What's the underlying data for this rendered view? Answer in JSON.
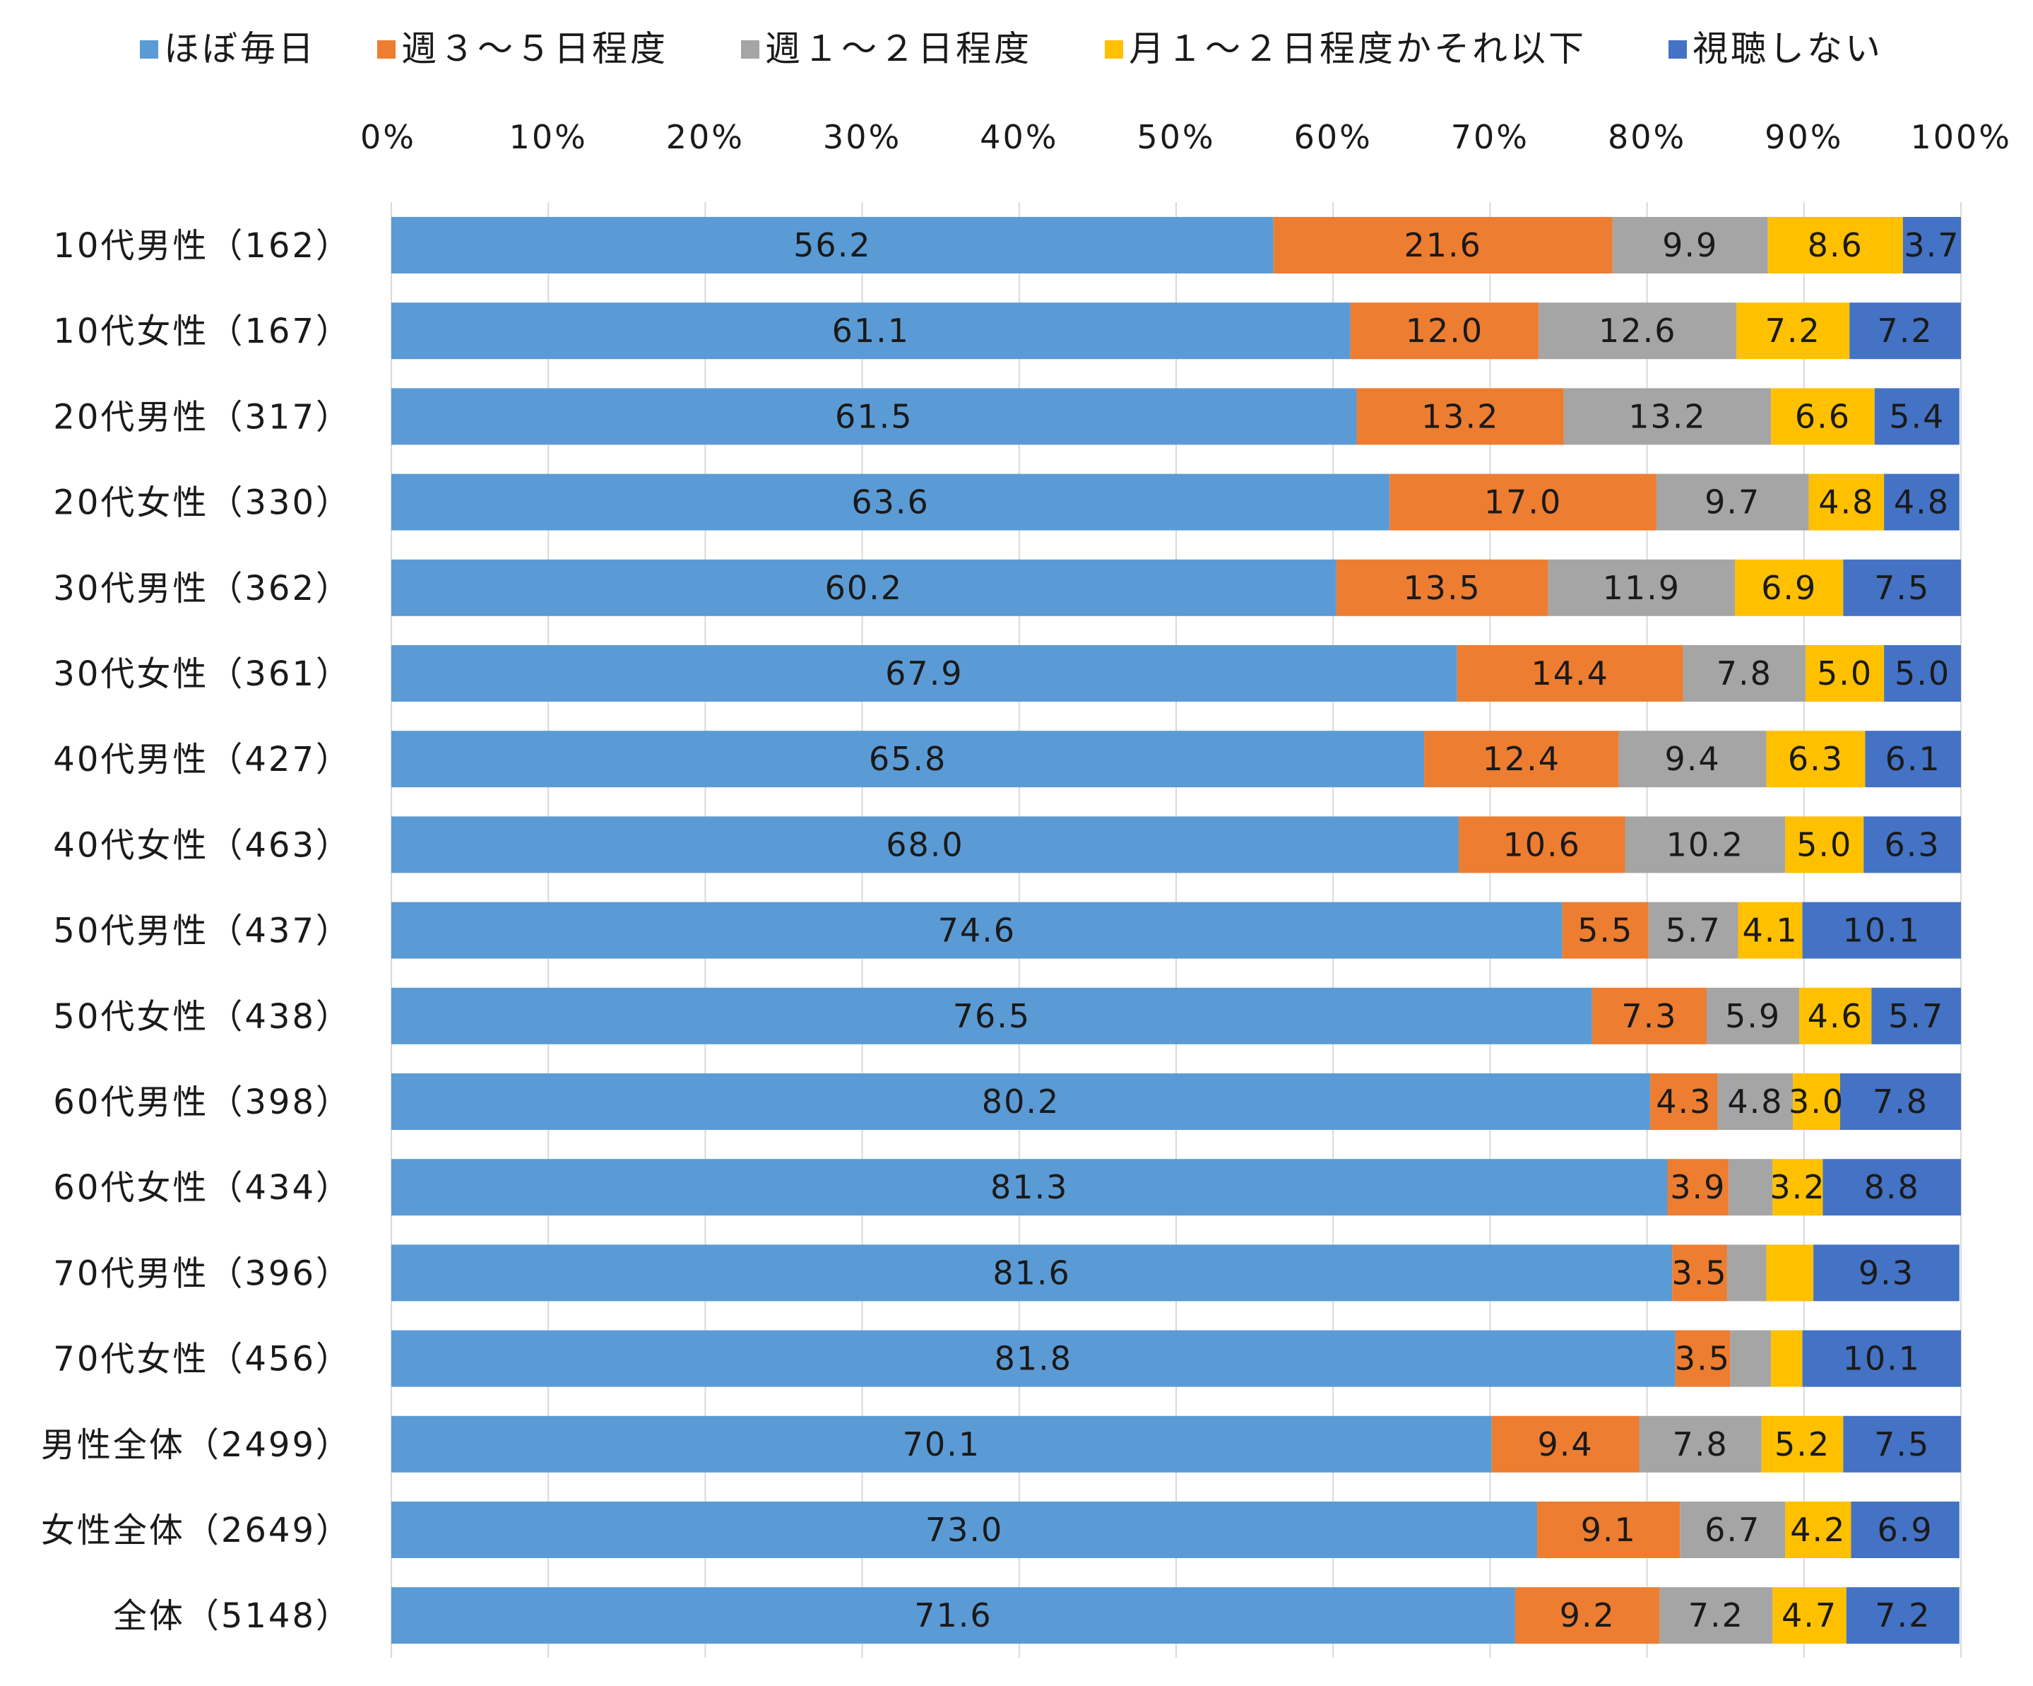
{
  "chart_data": {
    "type": "bar",
    "orientation": "horizontal-stacked-100",
    "title": "",
    "xlabel": "",
    "ylabel": "",
    "xlim": [
      0,
      100
    ],
    "x_ticks": [
      "0%",
      "10%",
      "20%",
      "30%",
      "40%",
      "50%",
      "60%",
      "70%",
      "80%",
      "90%",
      "100%"
    ],
    "x_tick_values": [
      0,
      10,
      20,
      30,
      40,
      50,
      60,
      70,
      80,
      90,
      100
    ],
    "grid": "vertical",
    "legend_position": "top",
    "categories": [
      "10代男性（162）",
      "10代女性（167）",
      "20代男性（317）",
      "20代女性（330）",
      "30代男性（362）",
      "30代女性（361）",
      "40代男性（427）",
      "40代女性（463）",
      "50代男性（437）",
      "50代女性（438）",
      "60代男性（398）",
      "60代女性（434）",
      "70代男性（396）",
      "70代女性（456）",
      "男性全体（2499）",
      "女性全体（2649）",
      "全体（5148）"
    ],
    "series": [
      {
        "name": "ほぼ毎日",
        "color": "#5B9BD5",
        "values": [
          56.2,
          61.1,
          61.5,
          63.6,
          60.2,
          67.9,
          65.8,
          68.0,
          74.6,
          76.5,
          80.2,
          81.3,
          81.6,
          81.8,
          70.1,
          73.0,
          71.6
        ],
        "labels": [
          "56.2",
          "61.1",
          "61.5",
          "63.6",
          "60.2",
          "67.9",
          "65.8",
          "68.0",
          "74.6",
          "76.5",
          "80.2",
          "81.3",
          "81.6",
          "81.8",
          "70.1",
          "73.0",
          "71.6"
        ]
      },
      {
        "name": "週３～５日程度",
        "color": "#ED7D31",
        "values": [
          21.6,
          12.0,
          13.2,
          17.0,
          13.5,
          14.4,
          12.4,
          10.6,
          5.5,
          7.3,
          4.3,
          3.9,
          3.5,
          3.5,
          9.4,
          9.1,
          9.2
        ],
        "labels": [
          "21.6",
          "12.0",
          "13.2",
          "17.0",
          "13.5",
          "14.4",
          "12.4",
          "10.6",
          "5.5",
          "7.3",
          "4.3",
          "3.9",
          "3.5",
          "3.5",
          "9.4",
          "9.1",
          "9.2"
        ]
      },
      {
        "name": "週１～２日程度",
        "color": "#A5A5A5",
        "values": [
          9.9,
          12.6,
          13.2,
          9.7,
          11.9,
          7.8,
          9.4,
          10.2,
          5.7,
          5.9,
          4.8,
          2.8,
          2.5,
          2.6,
          7.8,
          6.7,
          7.2
        ],
        "labels": [
          "9.9",
          "12.6",
          "13.2",
          "9.7",
          "11.9",
          "7.8",
          "9.4",
          "10.2",
          "5.7",
          "5.9",
          "4.8",
          "",
          "",
          "",
          "7.8",
          "6.7",
          "7.2"
        ]
      },
      {
        "name": "月１～２日程度かそれ以下",
        "color": "#FFC000",
        "values": [
          8.6,
          7.2,
          6.6,
          4.8,
          6.9,
          5.0,
          6.3,
          5.0,
          4.1,
          4.6,
          3.0,
          3.2,
          3.0,
          2.0,
          5.2,
          4.2,
          4.7
        ],
        "labels": [
          "8.6",
          "7.2",
          "6.6",
          "4.8",
          "6.9",
          "5.0",
          "6.3",
          "5.0",
          "4.1",
          "4.6",
          "3.0",
          "3.2",
          "",
          "",
          "5.2",
          "4.2",
          "4.7"
        ]
      },
      {
        "name": "視聴しない",
        "color": "#4472C4",
        "values": [
          3.7,
          7.2,
          5.4,
          4.8,
          7.5,
          5.0,
          6.1,
          6.3,
          10.1,
          5.7,
          7.8,
          8.8,
          9.3,
          10.1,
          7.5,
          6.9,
          7.2
        ],
        "labels": [
          "3.7",
          "7.2",
          "5.4",
          "4.8",
          "7.5",
          "5.0",
          "6.1",
          "6.3",
          "10.1",
          "5.7",
          "7.8",
          "8.8",
          "9.3",
          "10.1",
          "7.5",
          "6.9",
          "7.2"
        ]
      }
    ]
  }
}
